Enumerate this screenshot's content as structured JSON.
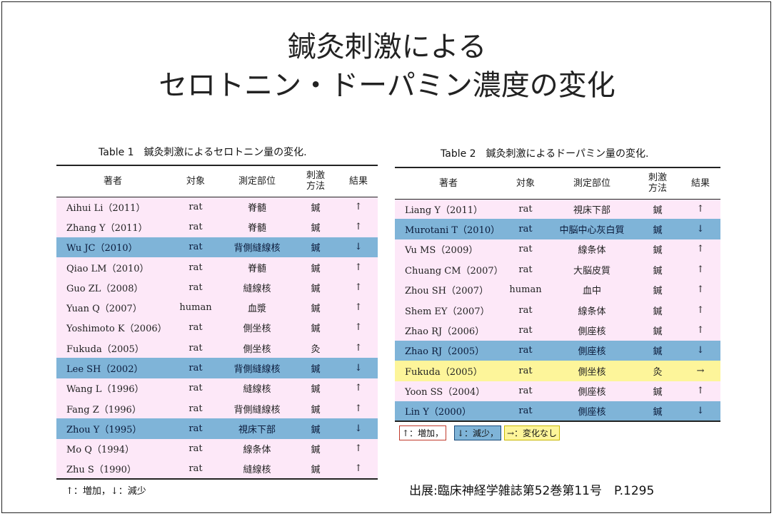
{
  "title": {
    "line1": "鍼灸刺激による",
    "line2": "セロトニン・ドーパミン濃度の変化"
  },
  "table1": {
    "caption": "Table 1　鍼灸刺激によるセロトニン量の変化.",
    "headers": [
      "著者",
      "対象",
      "測定部位",
      "刺激\n方法",
      "結果"
    ],
    "rows": [
      {
        "author": "Aihui Li（2011）",
        "subject": "rat",
        "site": "脊髄",
        "method": "鍼",
        "result": "↑",
        "type": "inc"
      },
      {
        "author": "Zhang Y（2011）",
        "subject": "rat",
        "site": "脊髄",
        "method": "鍼",
        "result": "↑",
        "type": "inc"
      },
      {
        "author": "Wu JC（2010）",
        "subject": "rat",
        "site": "背側縫線核",
        "method": "鍼",
        "result": "↓",
        "type": "dec"
      },
      {
        "author": "Qiao LM（2010）",
        "subject": "rat",
        "site": "脊髄",
        "method": "鍼",
        "result": "↑",
        "type": "inc"
      },
      {
        "author": "Guo ZL（2008）",
        "subject": "rat",
        "site": "縫線核",
        "method": "鍼",
        "result": "↑",
        "type": "inc"
      },
      {
        "author": "Yuan Q（2007）",
        "subject": "human",
        "site": "血漿",
        "method": "鍼",
        "result": "↑",
        "type": "inc"
      },
      {
        "author": "Yoshimoto K（2006）",
        "subject": "rat",
        "site": "側坐核",
        "method": "鍼",
        "result": "↑",
        "type": "inc"
      },
      {
        "author": "Fukuda（2005）",
        "subject": "rat",
        "site": "側坐核",
        "method": "灸",
        "result": "↑",
        "type": "inc"
      },
      {
        "author": "Lee SH（2002）",
        "subject": "rat",
        "site": "背側縫線核",
        "method": "鍼",
        "result": "↓",
        "type": "dec"
      },
      {
        "author": "Wang L（1996）",
        "subject": "rat",
        "site": "縫線核",
        "method": "鍼",
        "result": "↑",
        "type": "inc"
      },
      {
        "author": "Fang Z（1996）",
        "subject": "rat",
        "site": "背側縫線核",
        "method": "鍼",
        "result": "↑",
        "type": "inc"
      },
      {
        "author": "Zhou Y（1995）",
        "subject": "rat",
        "site": "視床下部",
        "method": "鍼",
        "result": "↓",
        "type": "dec"
      },
      {
        "author": "Mo Q（1994）",
        "subject": "rat",
        "site": "線条体",
        "method": "鍼",
        "result": "↑",
        "type": "inc"
      },
      {
        "author": "Zhu S（1990）",
        "subject": "rat",
        "site": "縫線核",
        "method": "鍼",
        "result": "↑",
        "type": "inc"
      }
    ],
    "note": "↑：増加，↓：減少"
  },
  "table2": {
    "caption": "Table 2　鍼灸刺激によるドーパミン量の変化.",
    "headers": [
      "著者",
      "対象",
      "測定部位",
      "刺激\n方法",
      "結果"
    ],
    "rows": [
      {
        "author": "Liang Y（2011）",
        "subject": "rat",
        "site": "視床下部",
        "method": "鍼",
        "result": "↑",
        "type": "inc"
      },
      {
        "author": "Murotani T（2010）",
        "subject": "rat",
        "site": "中脳中心灰白質",
        "method": "鍼",
        "result": "↓",
        "type": "dec"
      },
      {
        "author": "Vu MS（2009）",
        "subject": "rat",
        "site": "線条体",
        "method": "鍼",
        "result": "↑",
        "type": "inc"
      },
      {
        "author": "Chuang CM（2007）",
        "subject": "rat",
        "site": "大脳皮質",
        "method": "鍼",
        "result": "↑",
        "type": "inc"
      },
      {
        "author": "Zhou SH（2007）",
        "subject": "human",
        "site": "血中",
        "method": "鍼",
        "result": "↑",
        "type": "inc"
      },
      {
        "author": "Shem EY（2007）",
        "subject": "rat",
        "site": "線条体",
        "method": "鍼",
        "result": "↑",
        "type": "inc"
      },
      {
        "author": "Zhao RJ（2006）",
        "subject": "rat",
        "site": "側座核",
        "method": "鍼",
        "result": "↑",
        "type": "inc"
      },
      {
        "author": "Zhao RJ（2005）",
        "subject": "rat",
        "site": "側座核",
        "method": "鍼",
        "result": "↓",
        "type": "dec"
      },
      {
        "author": "Fukuda（2005）",
        "subject": "rat",
        "site": "側坐核",
        "method": "灸",
        "result": "→",
        "type": "nc"
      },
      {
        "author": "Yoon SS（2004）",
        "subject": "rat",
        "site": "側座核",
        "method": "鍼",
        "result": "↑",
        "type": "inc"
      },
      {
        "author": "Lin Y（2000）",
        "subject": "rat",
        "site": "側座核",
        "method": "鍼",
        "result": "↓",
        "type": "dec"
      }
    ],
    "legend": {
      "inc": "↑：増加，",
      "dec": "↓：減少，",
      "nc": "→：変化なし"
    }
  },
  "source": "出展:臨床神経学雑誌第52巻第11号　P.1295",
  "colors": {
    "increase_row": "#fde8f8",
    "decrease_row": "#7fb4d8",
    "no_change_row": "#fdf59a"
  }
}
